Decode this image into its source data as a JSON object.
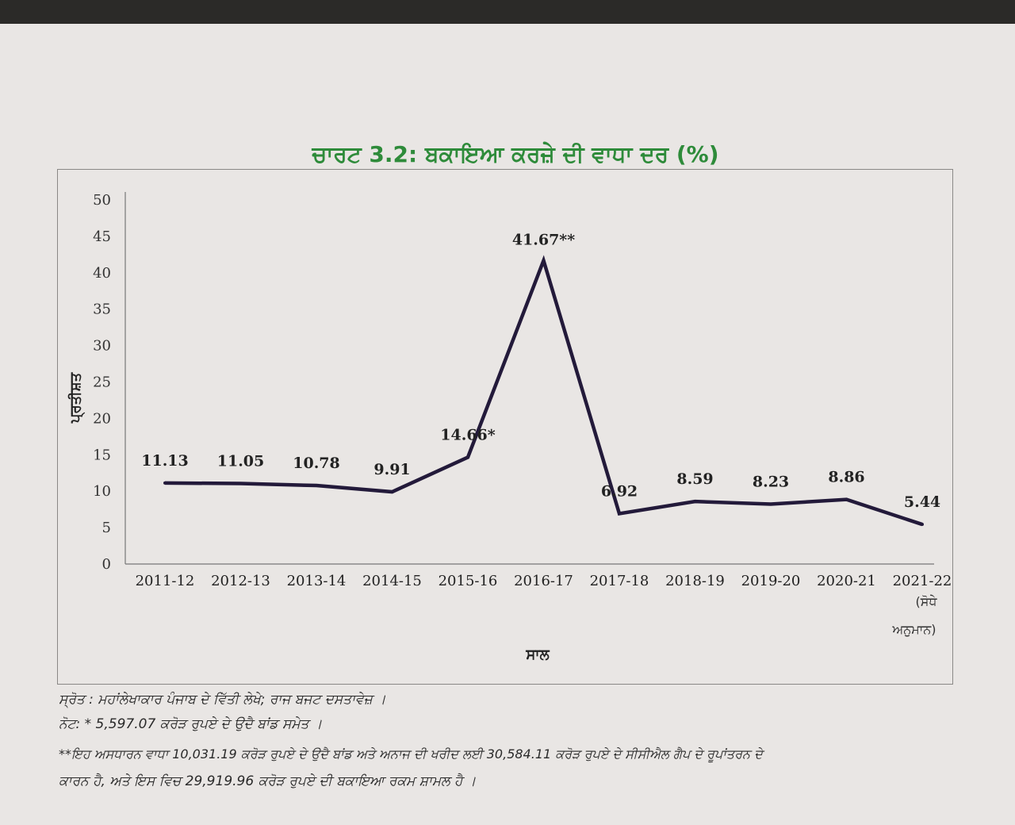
{
  "title": "ਚਾਰਟ 3.2: ਬਕਾਇਆ ਕਰਜ਼ੇ ਦੀ ਵਾਧਾ ਦਰ (%)",
  "chart_data": {
    "type": "line",
    "title": "ਚਾਰਟ 3.2: ਬਕਾਇਆ ਕਰਜ਼ੇ ਦੀ ਵਾਧਾ ਦਰ (%)",
    "xlabel": "ਸਾਲ",
    "ylabel": "ਪ੍ਰਤੀਸ਼ਤ",
    "ylim": [
      0,
      50
    ],
    "yticks": [
      "0",
      "5",
      "10",
      "15",
      "20",
      "25",
      "30",
      "35",
      "40",
      "45",
      "50"
    ],
    "categories": [
      "2011-12",
      "2012-13",
      "2013-14",
      "2014-15",
      "2015-16",
      "2016-17",
      "2017-18",
      "2018-19",
      "2019-20",
      "2020-21",
      "2021-22"
    ],
    "category_sublabels": [
      "",
      "",
      "",
      "",
      "",
      "",
      "",
      "",
      "",
      "",
      "(ਸੋਧੇ ਅਨੁਮਾਨ)"
    ],
    "series": [
      {
        "values": [
          11.13,
          11.05,
          10.78,
          9.91,
          14.66,
          41.67,
          6.92,
          8.59,
          8.23,
          8.86,
          5.44
        ],
        "labels": [
          "11.13",
          "11.05",
          "10.78",
          "9.91",
          "14.66*",
          "41.67**",
          "6.92",
          "8.59",
          "8.23",
          "8.86",
          "5.44"
        ],
        "color": "#231a3a"
      }
    ],
    "grid": false,
    "legend": "none"
  },
  "notes": {
    "source": "ਸ੍ਰੋਤ : ਮਹਾਂਲੇਖਾਕਾਰ ਪੰਜਾਬ ਦੇ ਵਿੱਤੀ ਲੇਖੇ; ਰਾਜ ਬਜਟ ਦਸਤਾਵੇਜ਼ ।",
    "note1": "ਨੋਟ: * 5,597.07 ਕਰੋੜ ਰੁਪਏ ਦੇ ਉਦੈ ਬਾਂਡ ਸਮੇਤ ।",
    "note2": "**ਇਹ ਅਸਧਾਰਨ ਵਾਧਾ 10,031.19 ਕਰੋੜ ਰੁਪਏ ਦੇ ਉਦੈ ਬਾਂਡ ਅਤੇ ਅਨਾਜ ਦੀ ਖਰੀਦ ਲਈ 30,584.11 ਕਰੋੜ ਰੁਪਏ ਦੇ ਸੀਸੀਐਲ ਗੈਪ ਦੇ ਰੂਪਾਂਤਰਨ ਦੇ",
    "note3": "ਕਾਰਨ ਹੈ, ਅਤੇ ਇਸ ਵਿਚ 29,919.96 ਕਰੋੜ ਰੁਪਏ ਦੀ ਬਕਾਇਆ ਰਕਮ ਸ਼ਾਮਲ ਹੈ ।"
  }
}
